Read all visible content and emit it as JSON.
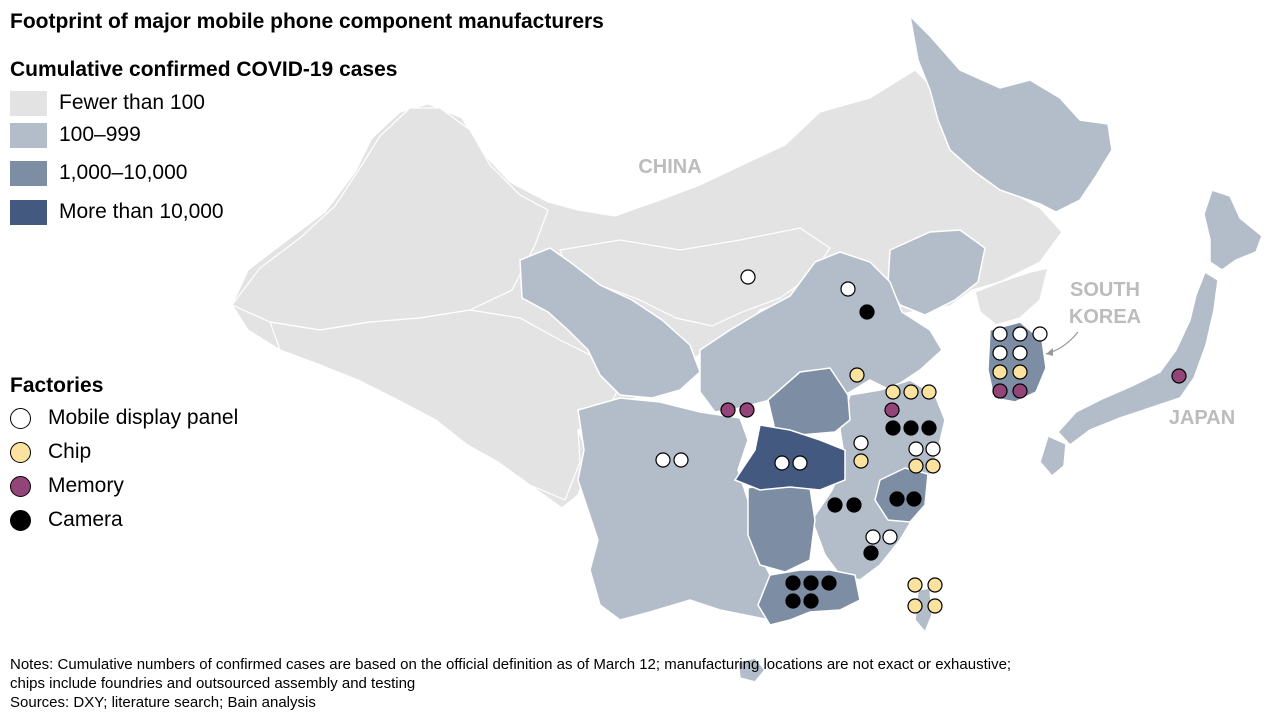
{
  "title": "Footprint of major mobile phone component manufacturers",
  "legend": {
    "title": "Cumulative confirmed COVID-19 cases",
    "items": [
      {
        "label": "Fewer than 100",
        "color": "#e3e3e3"
      },
      {
        "label": "100–999",
        "color": "#b3bdc9"
      },
      {
        "label": "1,000–10,000",
        "color": "#7d8ea4"
      },
      {
        "label": "More than 10,000",
        "color": "#44597f"
      }
    ]
  },
  "factories": {
    "title": "Factories",
    "items": [
      {
        "label": "Mobile display panel",
        "color": "#ffffff"
      },
      {
        "label": "Chip",
        "color": "#fbe29e"
      },
      {
        "label": "Memory",
        "color": "#93457a"
      },
      {
        "label": "Camera",
        "color": "#000000"
      }
    ]
  },
  "map_labels": {
    "china": "CHINA",
    "south_korea_1": "SOUTH",
    "south_korea_2": "KOREA",
    "japan": "JAPAN"
  },
  "notes": [
    "Notes: Cumulative numbers of confirmed cases are based on the official definition as of March 12; manufacturing locations are not exact or exhaustive;",
    "chips include foundries and outsourced assembly and testing",
    "Sources: DXY; literature search; Bain analysis"
  ]
}
